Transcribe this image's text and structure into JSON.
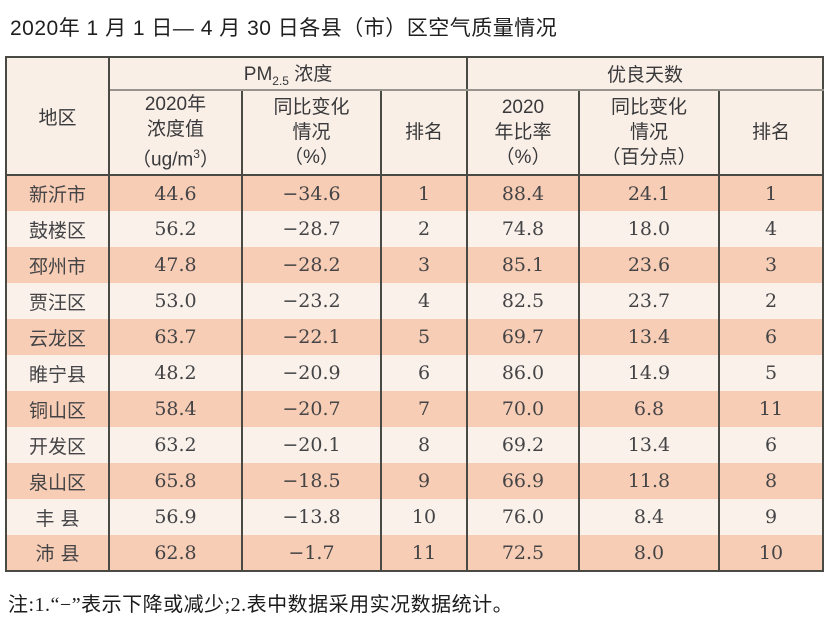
{
  "title": "2020年 1 月 1 日— 4 月 30 日各县（市）区空气质量情况",
  "colors": {
    "row_odd": "#f8cdb5",
    "row_even": "#faf1ea",
    "header_bg": "#f9efe7",
    "border_dark": "#4a4a45",
    "border_light": "#97948e"
  },
  "table": {
    "region_header": "地区",
    "group": {
      "pm_prefix": "PM",
      "pm_sub": "2.5",
      "pm_suffix": " 浓度",
      "good_days": "优良天数"
    },
    "sub": {
      "pm_value_l1": "2020年",
      "pm_value_l2": "浓度值",
      "pm_value_l3_pre": "（ug/m",
      "pm_value_l3_sup": "3",
      "pm_value_l3_post": "）",
      "pm_change_l1": "同比变化",
      "pm_change_l2": "情况",
      "pm_change_l3": "（%）",
      "pm_rank": "排名",
      "gd_ratio_l1": "2020",
      "gd_ratio_l2": "年比率",
      "gd_ratio_l3": "（%）",
      "gd_change_l1": "同比变化",
      "gd_change_l2": "情况",
      "gd_change_l3": "（百分点）",
      "gd_rank": "排名"
    },
    "rows": [
      {
        "region": "新沂市",
        "pm_value": "44.6",
        "pm_change": "−34.6",
        "pm_rank": "1",
        "ratio": "88.4",
        "ratio_change": "24.1",
        "rank": "1"
      },
      {
        "region": "鼓楼区",
        "pm_value": "56.2",
        "pm_change": "−28.7",
        "pm_rank": "2",
        "ratio": "74.8",
        "ratio_change": "18.0",
        "rank": "4"
      },
      {
        "region": "邳州市",
        "pm_value": "47.8",
        "pm_change": "−28.2",
        "pm_rank": "3",
        "ratio": "85.1",
        "ratio_change": "23.6",
        "rank": "3"
      },
      {
        "region": "贾汪区",
        "pm_value": "53.0",
        "pm_change": "−23.2",
        "pm_rank": "4",
        "ratio": "82.5",
        "ratio_change": "23.7",
        "rank": "2"
      },
      {
        "region": "云龙区",
        "pm_value": "63.7",
        "pm_change": "−22.1",
        "pm_rank": "5",
        "ratio": "69.7",
        "ratio_change": "13.4",
        "rank": "6"
      },
      {
        "region": "睢宁县",
        "pm_value": "48.2",
        "pm_change": "−20.9",
        "pm_rank": "6",
        "ratio": "86.0",
        "ratio_change": "14.9",
        "rank": "5"
      },
      {
        "region": "铜山区",
        "pm_value": "58.4",
        "pm_change": "−20.7",
        "pm_rank": "7",
        "ratio": "70.0",
        "ratio_change": "6.8",
        "rank": "11"
      },
      {
        "region": "开发区",
        "pm_value": "63.2",
        "pm_change": "−20.1",
        "pm_rank": "8",
        "ratio": "69.2",
        "ratio_change": "13.4",
        "rank": "6"
      },
      {
        "region": "泉山区",
        "pm_value": "65.8",
        "pm_change": "−18.5",
        "pm_rank": "9",
        "ratio": "66.9",
        "ratio_change": "11.8",
        "rank": "8"
      },
      {
        "region": "丰 县",
        "pm_value": "56.9",
        "pm_change": "−13.8",
        "pm_rank": "10",
        "ratio": "76.0",
        "ratio_change": "8.4",
        "rank": "9"
      },
      {
        "region": "沛 县",
        "pm_value": "62.8",
        "pm_change": "−1.7",
        "pm_rank": "11",
        "ratio": "72.5",
        "ratio_change": "8.0",
        "rank": "10"
      }
    ]
  },
  "note": "注:1.“−”表示下降或减少;2.表中数据采用实况数据统计。"
}
